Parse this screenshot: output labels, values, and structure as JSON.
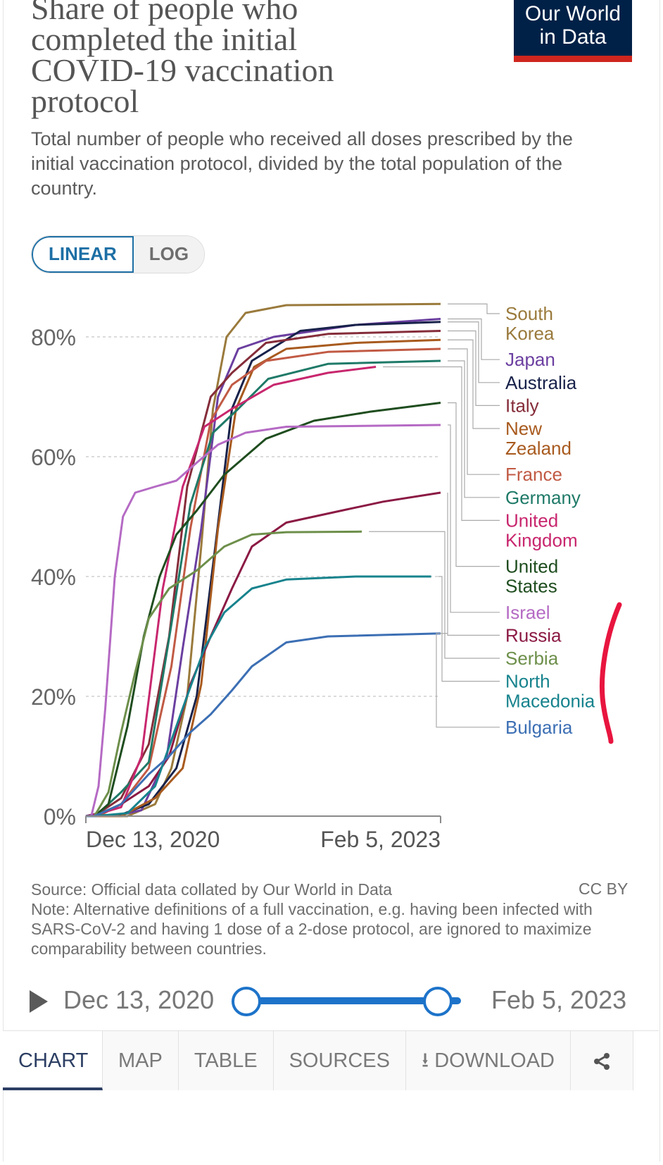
{
  "header": {
    "title": "Share of people who completed the initial COVID-19 vaccination protocol",
    "subtitle": "Total number of people who received all doses prescribed by the initial vaccination protocol, divided by the total population of the country.",
    "logo_line1": "Our World",
    "logo_line2": "in Data"
  },
  "scale_toggle": {
    "linear": "LINEAR",
    "log": "LOG",
    "selected": "LINEAR"
  },
  "footer": {
    "source": "Source: Official data collated by Our World in Data",
    "license": "CC BY",
    "note": "Note: Alternative definitions of a full vaccination, e.g. having been infected with SARS-CoV-2 and having 1 dose of a 2-dose protocol, are ignored to maximize comparability between countries."
  },
  "timeline": {
    "start": "Dec 13, 2020",
    "end": "Feb 5, 2023"
  },
  "tabs": {
    "chart": "CHART",
    "map": "MAP",
    "table": "TABLE",
    "sources": "SOURCES",
    "download": "DOWNLOAD"
  },
  "icons": {
    "play": "play-icon",
    "download": "download-icon",
    "share": "share-icon"
  },
  "annotation_color": "#e8153f",
  "chart_data": {
    "type": "line",
    "x_range": [
      "2020-12-13",
      "2023-02-05"
    ],
    "x_ticks": [
      "Dec 13, 2020",
      "Feb 5, 2023"
    ],
    "ylim": [
      0,
      85
    ],
    "y_ticks": [
      {
        "value": 0,
        "label": "0%"
      },
      {
        "value": 20,
        "label": "20%"
      },
      {
        "value": 40,
        "label": "40%"
      },
      {
        "value": 60,
        "label": "60%"
      },
      {
        "value": 80,
        "label": "80%"
      }
    ],
    "grid": "horizontal dotted",
    "legend": "right, labels at line ends",
    "series": [
      {
        "name": "South Korea",
        "color": "#9a7a3c",
        "points": [
          [
            "2020-12-13",
            0
          ],
          [
            "2021-03-15",
            0
          ],
          [
            "2021-05-15",
            2
          ],
          [
            "2021-06-20",
            8
          ],
          [
            "2021-07-25",
            20
          ],
          [
            "2021-08-25",
            45
          ],
          [
            "2021-09-20",
            68
          ],
          [
            "2021-10-20",
            80
          ],
          [
            "2021-12-01",
            84
          ],
          [
            "2022-03-01",
            85.3
          ],
          [
            "2023-02-05",
            85.5
          ]
        ]
      },
      {
        "name": "Japan",
        "color": "#6b3fa0",
        "points": [
          [
            "2020-12-13",
            0
          ],
          [
            "2021-02-15",
            0
          ],
          [
            "2021-04-15",
            1
          ],
          [
            "2021-06-10",
            10
          ],
          [
            "2021-07-15",
            28
          ],
          [
            "2021-08-25",
            48
          ],
          [
            "2021-10-01",
            70
          ],
          [
            "2021-11-15",
            78
          ],
          [
            "2022-02-01",
            80
          ],
          [
            "2022-08-01",
            82
          ],
          [
            "2023-02-05",
            83
          ]
        ]
      },
      {
        "name": "Australia",
        "color": "#18224a",
        "points": [
          [
            "2020-12-13",
            0
          ],
          [
            "2021-02-20",
            0
          ],
          [
            "2021-05-01",
            2
          ],
          [
            "2021-07-01",
            8
          ],
          [
            "2021-08-15",
            20
          ],
          [
            "2021-09-25",
            45
          ],
          [
            "2021-11-01",
            68
          ],
          [
            "2021-12-15",
            76
          ],
          [
            "2022-04-01",
            81
          ],
          [
            "2022-08-01",
            82
          ],
          [
            "2023-02-05",
            82.5
          ]
        ]
      },
      {
        "name": "Italy",
        "color": "#852d3a",
        "points": [
          [
            "2020-12-13",
            0
          ],
          [
            "2021-01-10",
            0.5
          ],
          [
            "2021-03-01",
            3
          ],
          [
            "2021-05-01",
            12
          ],
          [
            "2021-06-15",
            30
          ],
          [
            "2021-07-25",
            55
          ],
          [
            "2021-09-15",
            70
          ],
          [
            "2021-11-01",
            74
          ],
          [
            "2022-01-15",
            79
          ],
          [
            "2022-06-01",
            80.5
          ],
          [
            "2023-02-05",
            81
          ]
        ]
      },
      {
        "name": "New Zealand",
        "color": "#a85a1e",
        "points": [
          [
            "2020-12-13",
            0
          ],
          [
            "2021-03-01",
            0
          ],
          [
            "2021-05-15",
            3
          ],
          [
            "2021-07-15",
            8
          ],
          [
            "2021-08-25",
            22
          ],
          [
            "2021-10-01",
            48
          ],
          [
            "2021-11-10",
            68
          ],
          [
            "2021-12-20",
            75
          ],
          [
            "2022-03-01",
            78
          ],
          [
            "2022-08-01",
            79
          ],
          [
            "2023-02-05",
            79.5
          ]
        ]
      },
      {
        "name": "France",
        "color": "#c15a44",
        "points": [
          [
            "2020-12-13",
            0
          ],
          [
            "2021-01-10",
            0
          ],
          [
            "2021-03-01",
            2
          ],
          [
            "2021-05-01",
            8
          ],
          [
            "2021-06-20",
            25
          ],
          [
            "2021-08-01",
            48
          ],
          [
            "2021-09-15",
            66
          ],
          [
            "2021-11-01",
            72
          ],
          [
            "2022-01-15",
            76
          ],
          [
            "2022-06-01",
            77.5
          ],
          [
            "2023-02-05",
            78
          ]
        ]
      },
      {
        "name": "Germany",
        "color": "#1f7a68",
        "points": [
          [
            "2020-12-13",
            0
          ],
          [
            "2021-01-10",
            0.5
          ],
          [
            "2021-03-01",
            4
          ],
          [
            "2021-05-01",
            9
          ],
          [
            "2021-06-20",
            32
          ],
          [
            "2021-08-01",
            52
          ],
          [
            "2021-09-20",
            64
          ],
          [
            "2021-11-15",
            68
          ],
          [
            "2022-01-20",
            73
          ],
          [
            "2022-06-01",
            75.5
          ],
          [
            "2023-02-05",
            76
          ]
        ]
      },
      {
        "name": "United Kingdom",
        "color": "#c8276e",
        "points": [
          [
            "2020-12-13",
            0
          ],
          [
            "2021-01-15",
            0.5
          ],
          [
            "2021-03-01",
            1.5
          ],
          [
            "2021-04-15",
            10
          ],
          [
            "2021-06-01",
            38
          ],
          [
            "2021-07-15",
            55
          ],
          [
            "2021-09-01",
            65
          ],
          [
            "2021-11-01",
            68
          ],
          [
            "2022-02-01",
            72
          ],
          [
            "2022-06-01",
            74
          ],
          [
            "2022-09-15",
            75
          ]
        ]
      },
      {
        "name": "United States",
        "color": "#1f4d1f",
        "points": [
          [
            "2020-12-13",
            0
          ],
          [
            "2021-01-01",
            0
          ],
          [
            "2021-02-01",
            2
          ],
          [
            "2021-03-15",
            15
          ],
          [
            "2021-04-20",
            30
          ],
          [
            "2021-05-25",
            40
          ],
          [
            "2021-07-01",
            47
          ],
          [
            "2021-08-15",
            51
          ],
          [
            "2021-10-15",
            57
          ],
          [
            "2022-01-15",
            63
          ],
          [
            "2022-05-01",
            66
          ],
          [
            "2022-09-01",
            67.5
          ],
          [
            "2023-02-05",
            69
          ]
        ]
      },
      {
        "name": "Israel",
        "color": "#b56ac4",
        "points": [
          [
            "2020-12-13",
            0
          ],
          [
            "2020-12-25",
            0
          ],
          [
            "2021-01-10",
            5
          ],
          [
            "2021-01-25",
            18
          ],
          [
            "2021-02-15",
            40
          ],
          [
            "2021-03-05",
            50
          ],
          [
            "2021-04-01",
            54
          ],
          [
            "2021-05-15",
            55
          ],
          [
            "2021-07-01",
            56
          ],
          [
            "2021-08-15",
            59
          ],
          [
            "2021-10-01",
            62
          ],
          [
            "2021-12-01",
            64
          ],
          [
            "2022-03-01",
            65
          ],
          [
            "2023-02-05",
            65.3
          ]
        ]
      },
      {
        "name": "Russia",
        "color": "#8b1a44",
        "points": [
          [
            "2020-12-13",
            0
          ],
          [
            "2021-01-01",
            0
          ],
          [
            "2021-03-01",
            2
          ],
          [
            "2021-05-01",
            5
          ],
          [
            "2021-06-15",
            10
          ],
          [
            "2021-08-01",
            22
          ],
          [
            "2021-09-15",
            30
          ],
          [
            "2021-11-01",
            38
          ],
          [
            "2021-12-15",
            45
          ],
          [
            "2022-03-01",
            49
          ],
          [
            "2022-07-01",
            51
          ],
          [
            "2022-10-01",
            52.5
          ],
          [
            "2023-02-05",
            54
          ]
        ]
      },
      {
        "name": "Serbia",
        "color": "#6d8f4a",
        "points": [
          [
            "2020-12-13",
            0
          ],
          [
            "2021-01-01",
            0
          ],
          [
            "2021-02-01",
            4
          ],
          [
            "2021-03-01",
            14
          ],
          [
            "2021-04-01",
            24
          ],
          [
            "2021-05-01",
            33
          ],
          [
            "2021-06-15",
            38
          ],
          [
            "2021-08-15",
            41
          ],
          [
            "2021-10-15",
            45
          ],
          [
            "2021-12-15",
            47
          ],
          [
            "2022-03-01",
            47.4
          ],
          [
            "2022-08-15",
            47.5
          ]
        ]
      },
      {
        "name": "North Macedonia",
        "color": "#17838d",
        "points": [
          [
            "2020-12-13",
            0
          ],
          [
            "2021-01-01",
            0
          ],
          [
            "2021-03-15",
            0.5
          ],
          [
            "2021-05-15",
            5
          ],
          [
            "2021-07-15",
            18
          ],
          [
            "2021-09-01",
            28
          ],
          [
            "2021-10-15",
            34
          ],
          [
            "2021-12-15",
            38
          ],
          [
            "2022-03-01",
            39.5
          ],
          [
            "2022-08-01",
            40
          ],
          [
            "2023-01-15",
            40
          ]
        ]
      },
      {
        "name": "Bulgaria",
        "color": "#3c6fb4",
        "points": [
          [
            "2020-12-13",
            0
          ],
          [
            "2021-01-01",
            0
          ],
          [
            "2021-03-01",
            2
          ],
          [
            "2021-05-01",
            7
          ],
          [
            "2021-06-15",
            10
          ],
          [
            "2021-08-01",
            14
          ],
          [
            "2021-09-15",
            17
          ],
          [
            "2021-11-01",
            21
          ],
          [
            "2021-12-15",
            25
          ],
          [
            "2022-03-01",
            29
          ],
          [
            "2022-06-01",
            30
          ],
          [
            "2023-02-05",
            30.5
          ]
        ]
      }
    ]
  }
}
